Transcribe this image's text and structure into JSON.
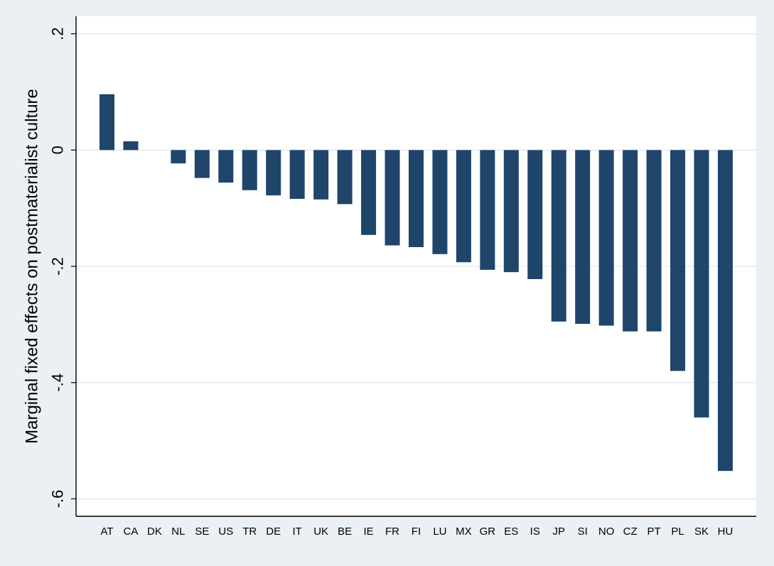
{
  "chart_data": {
    "type": "bar",
    "title": "",
    "xlabel": "",
    "ylabel": "Marginal fixed effects on postmaterialist culture",
    "ylim": [
      -0.63,
      0.23
    ],
    "yticks": [
      0.2,
      0,
      -0.2,
      -0.4,
      -0.6
    ],
    "ytick_labels": [
      ".2",
      "0",
      "-.2",
      "-.4",
      "-.6"
    ],
    "grid": true,
    "categories": [
      "AT",
      "CA",
      "DK",
      "NL",
      "SE",
      "US",
      "TR",
      "DE",
      "IT",
      "UK",
      "BE",
      "IE",
      "FR",
      "FI",
      "LU",
      "MX",
      "GR",
      "ES",
      "IS",
      "JP",
      "SI",
      "NO",
      "CZ",
      "PT",
      "PL",
      "SK",
      "HU"
    ],
    "values": [
      0.096,
      0.015,
      0.0,
      -0.023,
      -0.048,
      -0.056,
      -0.069,
      -0.078,
      -0.084,
      -0.085,
      -0.093,
      -0.146,
      -0.164,
      -0.167,
      -0.179,
      -0.193,
      -0.206,
      -0.21,
      -0.222,
      -0.295,
      -0.299,
      -0.302,
      -0.312,
      -0.312,
      -0.38,
      -0.46,
      -0.552
    ],
    "colors": {
      "bar": "#1f456b",
      "plot_bg": "#ffffff",
      "outer_bg": "#eaf0f4",
      "grid": "#e4ebf0",
      "axis": "#000000"
    }
  }
}
